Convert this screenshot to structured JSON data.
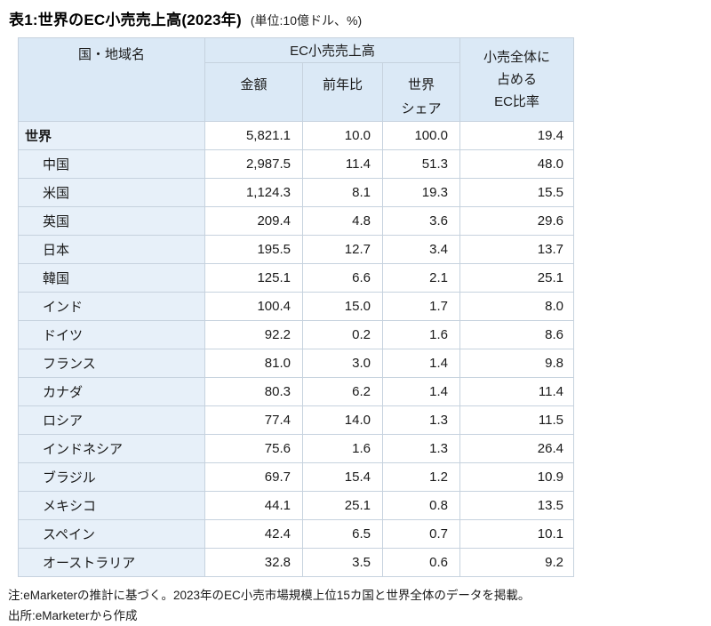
{
  "title": {
    "main": "表1:世界のEC小売売上高(2023年)",
    "unit": "(単位:10億ドル、%)"
  },
  "colors": {
    "header_bg": "#dbe9f6",
    "name_column_bg": "#e7f0f9",
    "border": "#c6d2de",
    "text": "#1a1a1a",
    "page_bg": "#ffffff"
  },
  "chart_data": {
    "type": "table",
    "title": "表1:世界のEC小売売上高(2023年)",
    "unit": "10億ドル、%",
    "columns": [
      "国・地域名",
      "金額",
      "前年比",
      "世界シェア",
      "小売全体に占めるEC比率"
    ],
    "rows": [
      [
        "世界",
        5821.1,
        10.0,
        100.0,
        19.4
      ],
      [
        "中国",
        2987.5,
        11.4,
        51.3,
        48.0
      ],
      [
        "米国",
        1124.3,
        8.1,
        19.3,
        15.5
      ],
      [
        "英国",
        209.4,
        4.8,
        3.6,
        29.6
      ],
      [
        "日本",
        195.5,
        12.7,
        3.4,
        13.7
      ],
      [
        "韓国",
        125.1,
        6.6,
        2.1,
        25.1
      ],
      [
        "インド",
        100.4,
        15.0,
        1.7,
        8.0
      ],
      [
        "ドイツ",
        92.2,
        0.2,
        1.6,
        8.6
      ],
      [
        "フランス",
        81.0,
        3.0,
        1.4,
        9.8
      ],
      [
        "カナダ",
        80.3,
        6.2,
        1.4,
        11.4
      ],
      [
        "ロシア",
        77.4,
        14.0,
        1.3,
        11.5
      ],
      [
        "インドネシア",
        75.6,
        1.6,
        1.3,
        26.4
      ],
      [
        "ブラジル",
        69.7,
        15.4,
        1.2,
        10.9
      ],
      [
        "メキシコ",
        44.1,
        25.1,
        0.8,
        13.5
      ],
      [
        "スペイン",
        42.4,
        6.5,
        0.7,
        10.1
      ],
      [
        "オーストラリア",
        32.8,
        3.5,
        0.6,
        9.2
      ]
    ]
  },
  "table": {
    "headers": {
      "country": "国・地域名",
      "group": "EC小売売上高",
      "amount": "金額",
      "yoy": "前年比",
      "share": "世界\nシェア",
      "ec_ratio": "小売全体に\n占める\nEC比率"
    },
    "rows": [
      {
        "name": "世界",
        "amount": "5,821.1",
        "yoy": "10.0",
        "share": "100.0",
        "ec_ratio": "19.4"
      },
      {
        "name": "中国",
        "amount": "2,987.5",
        "yoy": "11.4",
        "share": "51.3",
        "ec_ratio": "48.0"
      },
      {
        "name": "米国",
        "amount": "1,124.3",
        "yoy": "8.1",
        "share": "19.3",
        "ec_ratio": "15.5"
      },
      {
        "name": "英国",
        "amount": "209.4",
        "yoy": "4.8",
        "share": "3.6",
        "ec_ratio": "29.6"
      },
      {
        "name": "日本",
        "amount": "195.5",
        "yoy": "12.7",
        "share": "3.4",
        "ec_ratio": "13.7"
      },
      {
        "name": "韓国",
        "amount": "125.1",
        "yoy": "6.6",
        "share": "2.1",
        "ec_ratio": "25.1"
      },
      {
        "name": "インド",
        "amount": "100.4",
        "yoy": "15.0",
        "share": "1.7",
        "ec_ratio": "8.0"
      },
      {
        "name": "ドイツ",
        "amount": "92.2",
        "yoy": "0.2",
        "share": "1.6",
        "ec_ratio": "8.6"
      },
      {
        "name": "フランス",
        "amount": "81.0",
        "yoy": "3.0",
        "share": "1.4",
        "ec_ratio": "9.8"
      },
      {
        "name": "カナダ",
        "amount": "80.3",
        "yoy": "6.2",
        "share": "1.4",
        "ec_ratio": "11.4"
      },
      {
        "name": "ロシア",
        "amount": "77.4",
        "yoy": "14.0",
        "share": "1.3",
        "ec_ratio": "11.5"
      },
      {
        "name": "インドネシア",
        "amount": "75.6",
        "yoy": "1.6",
        "share": "1.3",
        "ec_ratio": "26.4"
      },
      {
        "name": "ブラジル",
        "amount": "69.7",
        "yoy": "15.4",
        "share": "1.2",
        "ec_ratio": "10.9"
      },
      {
        "name": "メキシコ",
        "amount": "44.1",
        "yoy": "25.1",
        "share": "0.8",
        "ec_ratio": "13.5"
      },
      {
        "name": "スペイン",
        "amount": "42.4",
        "yoy": "6.5",
        "share": "0.7",
        "ec_ratio": "10.1"
      },
      {
        "name": "オーストラリア",
        "amount": "32.8",
        "yoy": "3.5",
        "share": "0.6",
        "ec_ratio": "9.2"
      }
    ]
  },
  "notes": {
    "note": "注:eMarketerの推計に基づく。2023年のEC小売市場規模上位15カ国と世界全体のデータを掲載。",
    "source": "出所:eMarketerから作成"
  }
}
